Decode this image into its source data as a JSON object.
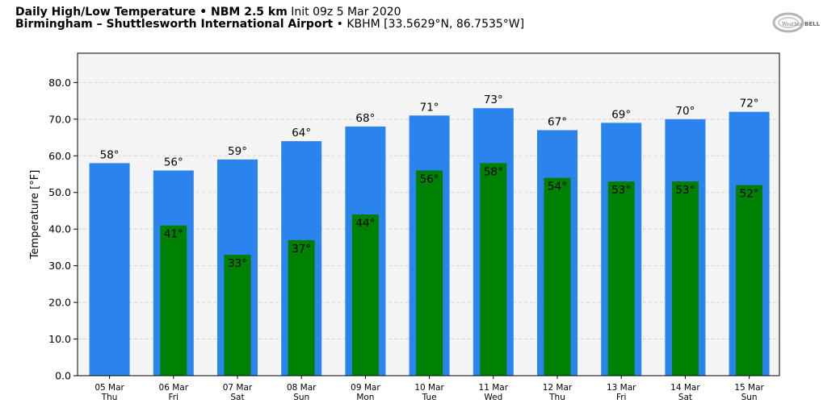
{
  "header": {
    "line1_bold": "Daily High/Low Temperature • NBM 2.5 km",
    "line1_normal": "Init 09z 5 Mar 2020",
    "line2_bold": "Birmingham – Shuttlesworth International Airport",
    "line2_normal": "• KBHM [33.5629°N, 86.7535°W]"
  },
  "logo": {
    "text_left": "Weather",
    "text_right": "BELL"
  },
  "colors": {
    "high": "#2b84ee",
    "low": "#008000",
    "plot_bg": "#f4f4f4"
  },
  "chart_data": {
    "type": "bar",
    "ylabel": "Temperature [°F]",
    "ylim": [
      0,
      88
    ],
    "yticks": [
      "0.0",
      "10.0",
      "20.0",
      "30.0",
      "40.0",
      "50.0",
      "60.0",
      "70.0",
      "80.0"
    ],
    "categories": [
      "05 Mar",
      "06 Mar",
      "07 Mar",
      "08 Mar",
      "09 Mar",
      "10 Mar",
      "11 Mar",
      "12 Mar",
      "13 Mar",
      "14 Mar",
      "15 Mar"
    ],
    "weekdays": [
      "Thu",
      "Fri",
      "Sat",
      "Sun",
      "Mon",
      "Tue",
      "Wed",
      "Thu",
      "Fri",
      "Sat",
      "Sun"
    ],
    "series": [
      {
        "values": [
          58,
          56,
          59,
          64,
          68,
          71,
          73,
          67,
          69,
          70,
          72
        ],
        "labels": [
          "58°",
          "56°",
          "59°",
          "64°",
          "68°",
          "71°",
          "73°",
          "67°",
          "69°",
          "70°",
          "72°"
        ]
      },
      {
        "values": [
          null,
          41,
          33,
          37,
          44,
          56,
          58,
          54,
          53,
          53,
          52
        ],
        "labels": [
          "",
          "41°",
          "33°",
          "37°",
          "44°",
          "56°",
          "58°",
          "54°",
          "53°",
          "53°",
          "52°"
        ]
      }
    ],
    "grid": true
  }
}
